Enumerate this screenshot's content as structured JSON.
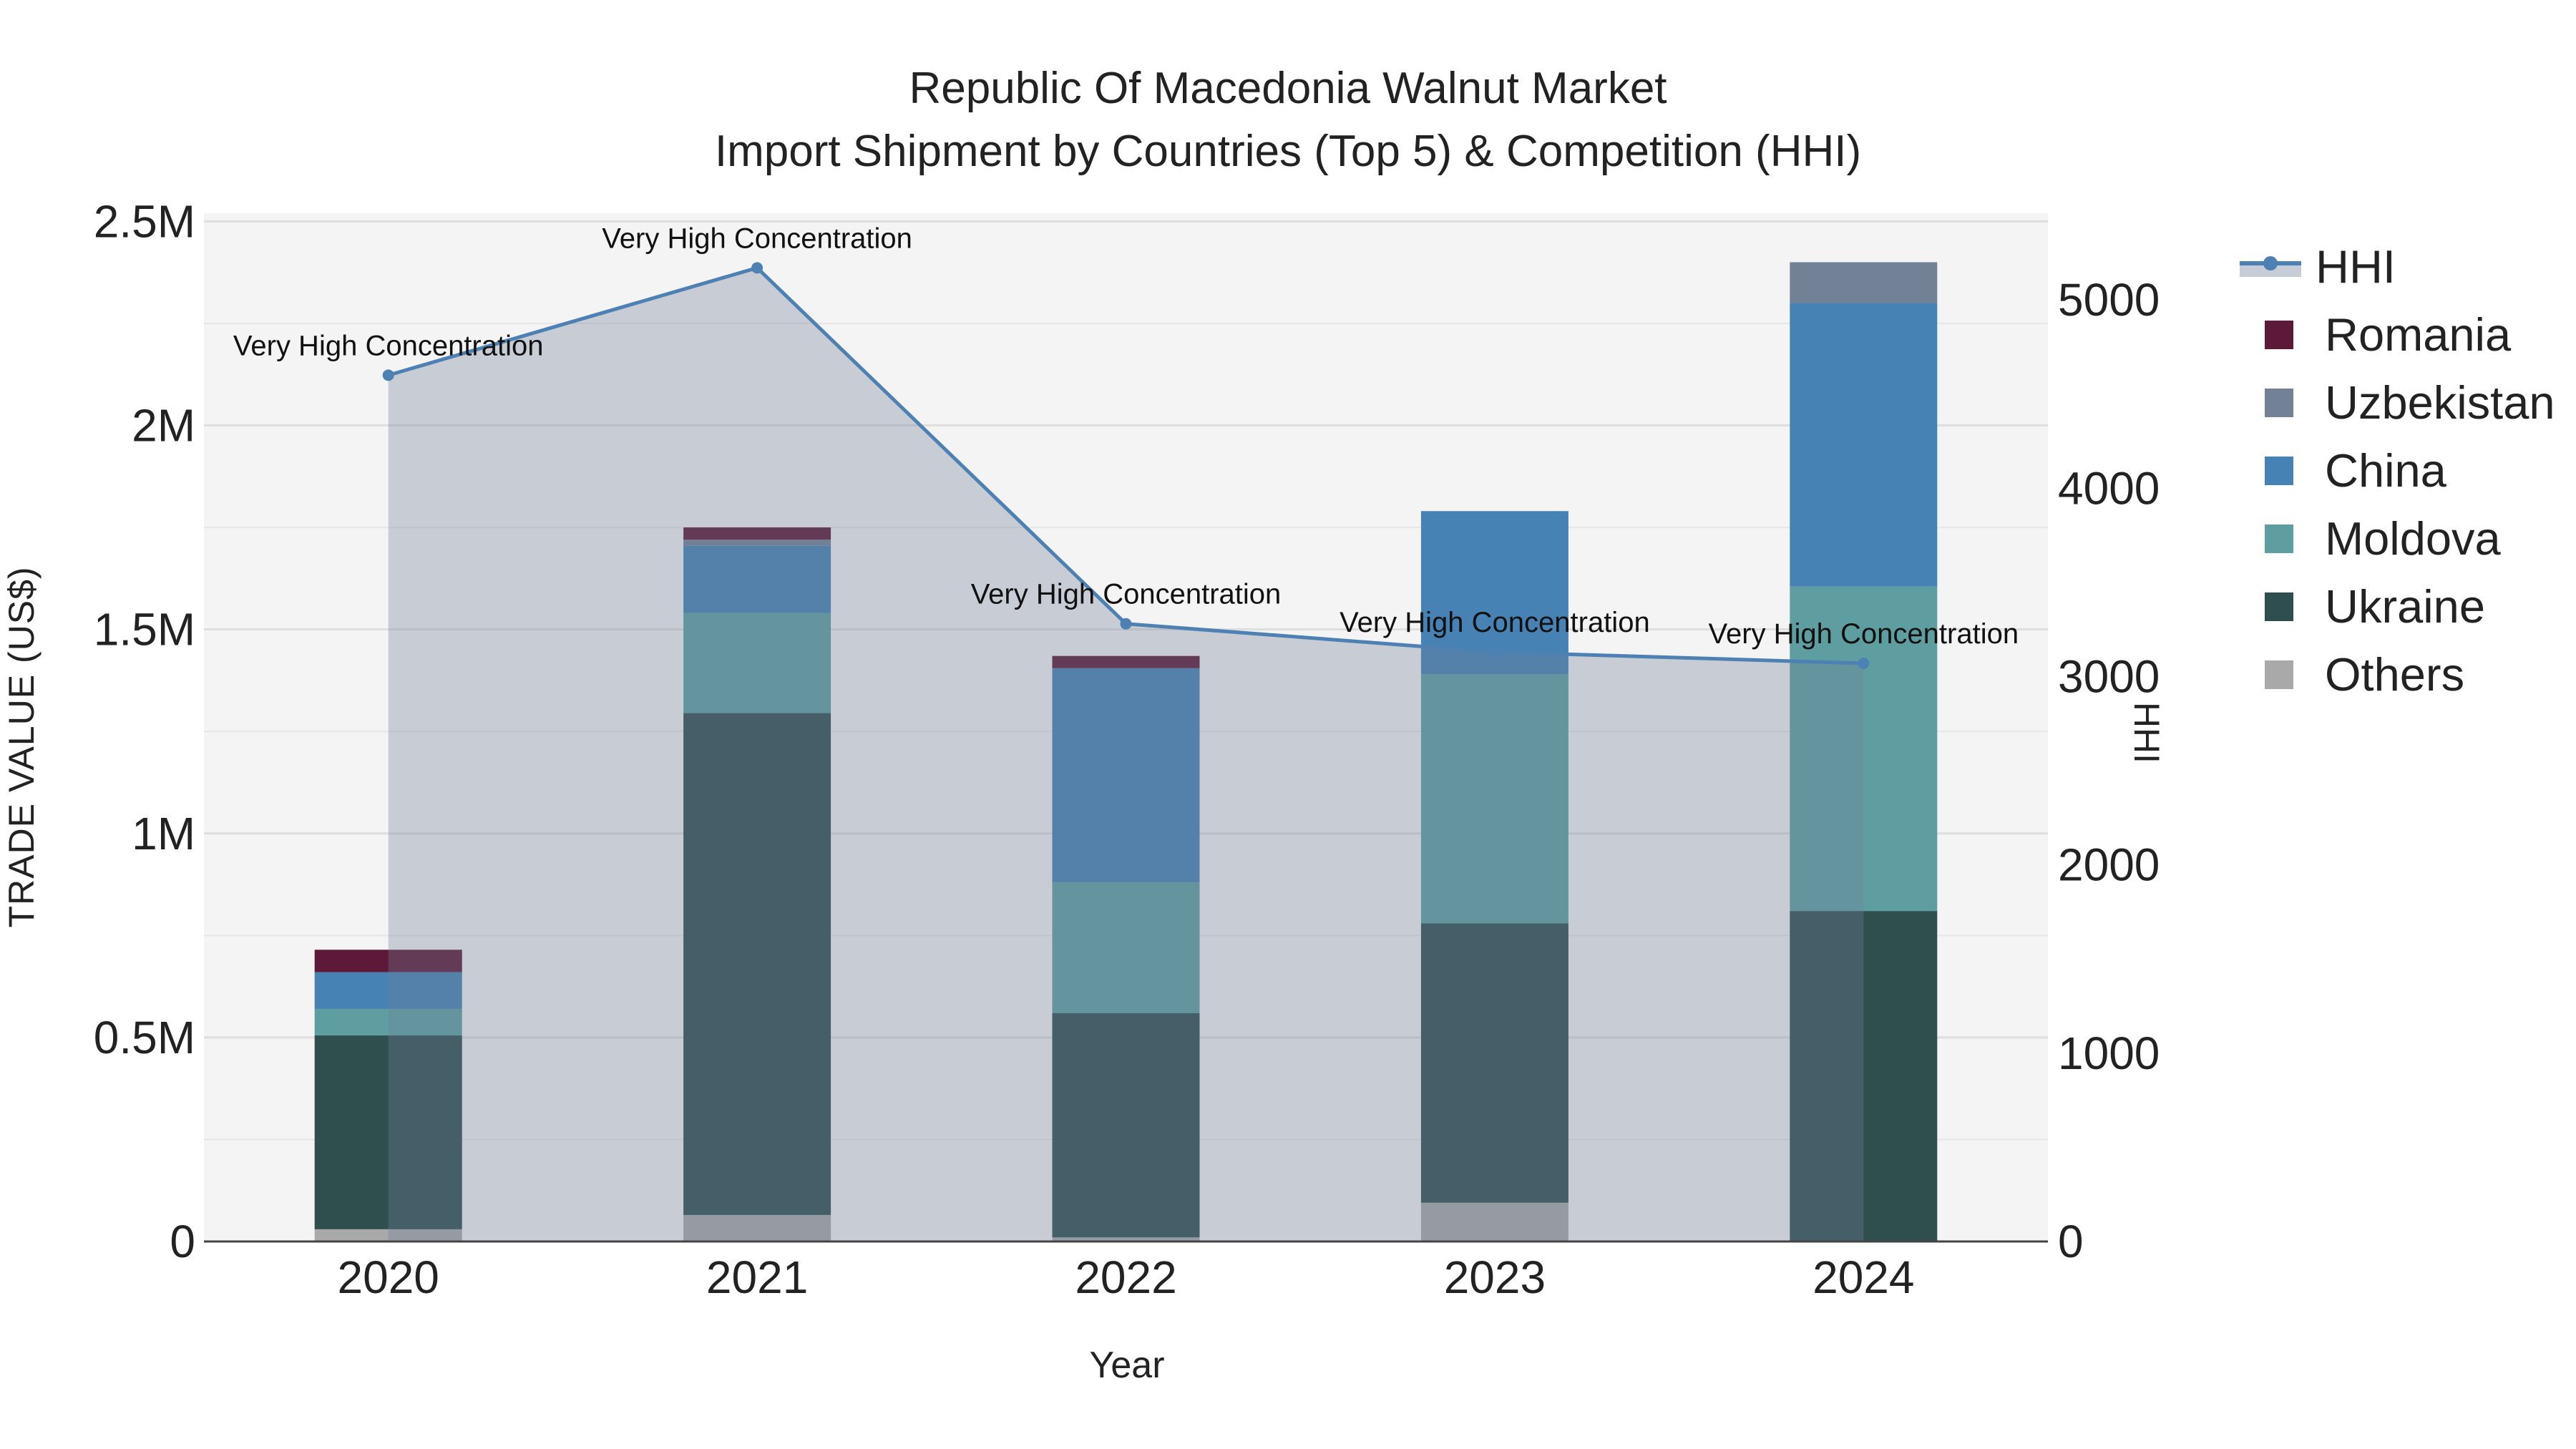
{
  "title": {
    "line1": "Republic Of Macedonia Walnut Market",
    "line2": "Import Shipment by Countries (Top 5) & Competition (HHI)"
  },
  "axes": {
    "x_title": "Year",
    "y_title": "TRADE VALUE (US$)",
    "y2_title": "HHI"
  },
  "legend": {
    "hhi": "HHI",
    "items": [
      {
        "label": "Romania",
        "color": "#5d1a38"
      },
      {
        "label": "Uzbekistan",
        "color": "#738196"
      },
      {
        "label": "China",
        "color": "#4682b4"
      },
      {
        "label": "Moldova",
        "color": "#5f9ea0"
      },
      {
        "label": "Ukraine",
        "color": "#2f4f4f"
      },
      {
        "label": "Others",
        "color": "#a9a9a9"
      }
    ]
  },
  "chart_data": {
    "type": "bar",
    "stacked": true,
    "categories": [
      "2020",
      "2021",
      "2022",
      "2023",
      "2024"
    ],
    "series": [
      {
        "name": "Others",
        "color": "#a9a9a9",
        "values": [
          30000,
          65000,
          10000,
          95000,
          0
        ]
      },
      {
        "name": "Ukraine",
        "color": "#2f4f4f",
        "values": [
          475000,
          1230000,
          550000,
          685000,
          810000
        ]
      },
      {
        "name": "Moldova",
        "color": "#5f9ea0",
        "values": [
          65000,
          245000,
          320000,
          610000,
          795000
        ]
      },
      {
        "name": "China",
        "color": "#4682b4",
        "values": [
          90000,
          165000,
          525000,
          400000,
          695000
        ]
      },
      {
        "name": "Uzbekistan",
        "color": "#738196",
        "values": [
          0,
          15000,
          0,
          0,
          100000
        ]
      },
      {
        "name": "Romania",
        "color": "#5d1a38",
        "values": [
          55000,
          30000,
          30000,
          0,
          0
        ]
      }
    ],
    "hhi": {
      "name": "HHI",
      "color": "#4e81b3",
      "values": [
        4600,
        5170,
        3280,
        3130,
        3070
      ],
      "labels": [
        "Very High Concentration",
        "Very High Concentration",
        "Very High Concentration",
        "Very High Concentration",
        "Very High Concentration"
      ]
    },
    "y_ticks": [
      0,
      500000,
      1000000,
      1500000,
      2000000,
      2500000
    ],
    "y_tick_labels": [
      "0",
      "0.5M",
      "1M",
      "1.5M",
      "2M",
      "2.5M"
    ],
    "y_range": [
      0,
      2520000
    ],
    "y2_ticks": [
      0,
      1000,
      2000,
      3000,
      4000,
      5000
    ],
    "y2_tick_labels": [
      "0",
      "1000",
      "2000",
      "3000",
      "4000",
      "5000"
    ],
    "y2_range": [
      0,
      5460
    ],
    "xlabel": "Year",
    "ylabel": "TRADE VALUE (US$)",
    "y2label": "HHI"
  }
}
